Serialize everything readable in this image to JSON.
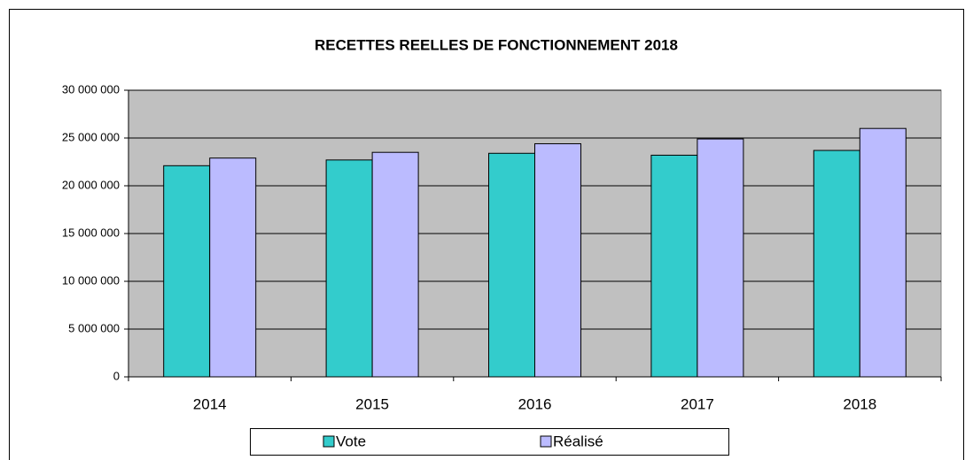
{
  "chart_data": {
    "type": "bar",
    "title": "RECETTES REELLES DE FONCTIONNEMENT 2018",
    "categories": [
      "2014",
      "2015",
      "2016",
      "2017",
      "2018"
    ],
    "series": [
      {
        "name": "Vote",
        "color": "#33cccc",
        "values": [
          22100000,
          22700000,
          23400000,
          23200000,
          23700000
        ]
      },
      {
        "name": "Réalisé",
        "color": "#bbbbff",
        "values": [
          22900000,
          23500000,
          24400000,
          24900000,
          26000000
        ]
      }
    ],
    "ylim": [
      0,
      30000000
    ],
    "yticks": [
      0,
      {
        "value": 5000000,
        "label": "5 000 000"
      },
      {
        "value": 10000000,
        "label": "10 000 000"
      },
      {
        "value": 15000000,
        "label": "15 000 000"
      },
      {
        "value": 20000000,
        "label": "20 000 000"
      },
      {
        "value": 25000000,
        "label": "25 000 000"
      },
      {
        "value": 30000000,
        "label": "30 000 000"
      }
    ],
    "grid": true,
    "legend": "bottom"
  }
}
